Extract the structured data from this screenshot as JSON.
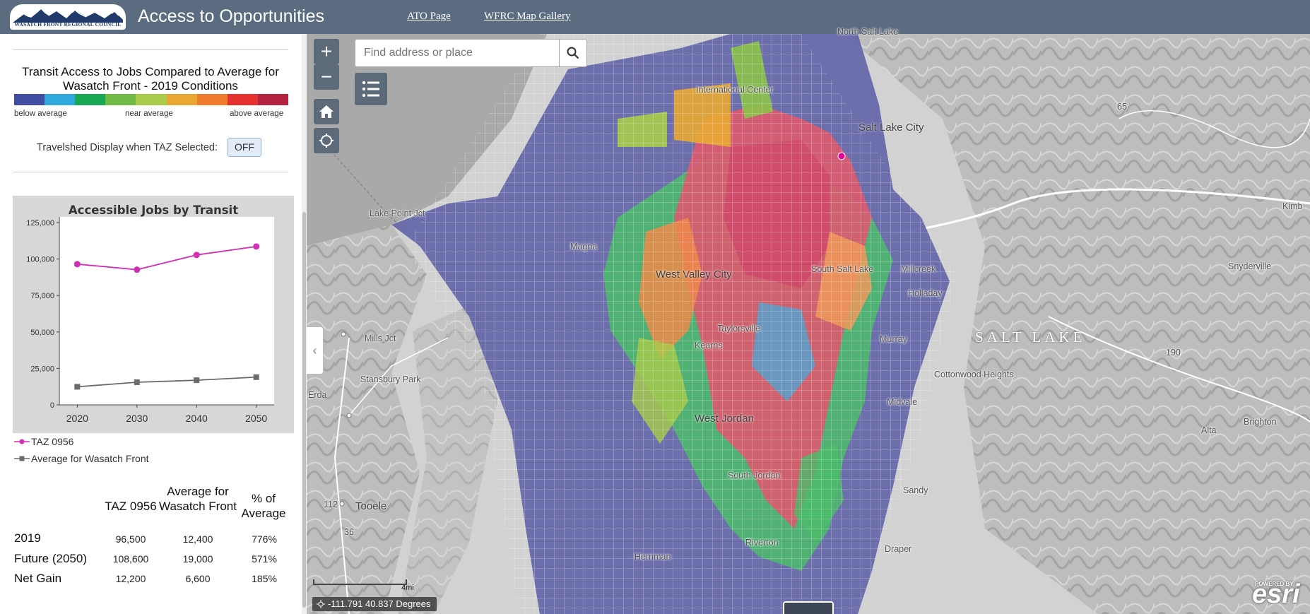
{
  "header": {
    "logo_text": "WASATCH FRONT REGIONAL COUNCIL",
    "title": "Access to Opportunities",
    "links": [
      {
        "label": "ATO Page"
      },
      {
        "label": "WFRC Map Gallery"
      }
    ]
  },
  "legend": {
    "title": "Transit Access to Jobs Compared to Average for Wasatch Front - 2019 Conditions",
    "colors": [
      "#414da0",
      "#2fa8df",
      "#18a754",
      "#6fbb45",
      "#a9cc4a",
      "#e8a832",
      "#ef7b2c",
      "#e5322e",
      "#b42440"
    ],
    "labels": {
      "low": "below average",
      "mid": "near average",
      "high": "above average"
    }
  },
  "travelshed": {
    "label": "Travelshed Display when TAZ Selected:",
    "toggle_value": "OFF"
  },
  "chart_data": {
    "type": "line",
    "title": "Accessible Jobs by Transit",
    "x": [
      2020,
      2030,
      2040,
      2050
    ],
    "ylim": [
      0,
      125000
    ],
    "yticks": [
      0,
      25000,
      50000,
      75000,
      100000,
      125000
    ],
    "ytick_labels": [
      "0",
      "25,000",
      "50,000",
      "75,000",
      "100,000",
      "125,000"
    ],
    "series": [
      {
        "name": "TAZ 0956",
        "values": [
          96500,
          92700,
          102800,
          108600
        ],
        "color": "#d22fb4",
        "marker": "circle"
      },
      {
        "name": "Average for Wasatch Front",
        "values": [
          12400,
          15500,
          16900,
          19000
        ],
        "color": "#6b6b6b",
        "marker": "square"
      }
    ]
  },
  "summary": {
    "columns": [
      "TAZ 0956",
      "Average for Wasatch Front",
      "% of Average"
    ],
    "rows": [
      {
        "label": "2019",
        "values": [
          "96,500",
          "12,400",
          "776%"
        ]
      },
      {
        "label": "Future (2050)",
        "values": [
          "108,600",
          "19,000",
          "571%"
        ]
      },
      {
        "label": "Net Gain",
        "values": [
          "12,200",
          "6,600",
          "185%"
        ]
      }
    ]
  },
  "map": {
    "search_placeholder": "Find address or place",
    "zoom_in": "+",
    "zoom_out": "−",
    "region_label": "SALT LAKE",
    "places": {
      "lake_point": "Lake Point Jct",
      "mills": "Mills Jct",
      "stansbury": "Stansbury Park",
      "erda": "Erda",
      "tooele": "Tooele",
      "west_valley": "West Valley City",
      "taylorsville": "Taylorsville",
      "kearns": "Kearns",
      "west_jordan": "West Jordan",
      "south_jordan": "South Jordan",
      "riverton": "Riverton",
      "herriman": "Herriman",
      "cottonwood": "Cottonwood Heights",
      "holladay": "Holladay",
      "millcreek": "Millcreek",
      "south_salt_lake": "South Salt Lake",
      "murray": "Murray",
      "midvale": "Midvale",
      "sandy": "Sandy",
      "draper": "Draper",
      "salt_lake_city": "Salt Lake City",
      "magna": "Magna",
      "north_salt_lake": "North Salt Lake",
      "snyderville": "Snyderville",
      "brighton": "Brighton",
      "alta": "Alta",
      "kimb": "Kimb",
      "international_center": "International Center",
      "road_65": "65",
      "road_190": "190",
      "road_112": "112",
      "road_36": "36"
    },
    "coords": "-111.791 40.837 Degrees",
    "scale": "4mi",
    "esri_powered": "POWERED BY",
    "esri": "esri"
  }
}
